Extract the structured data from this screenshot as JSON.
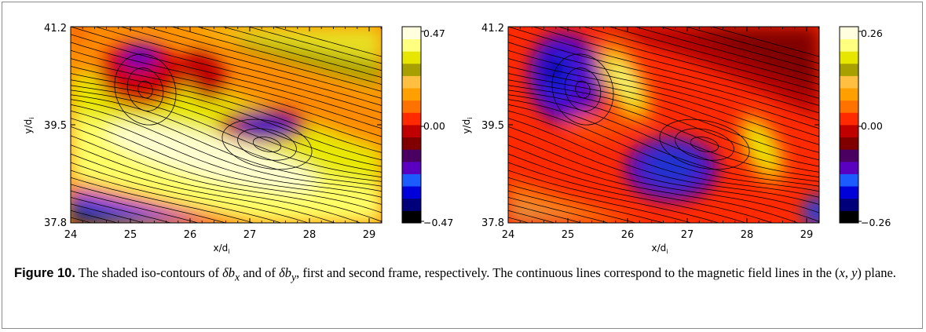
{
  "figure": {
    "panels": [
      {
        "id": "delta-bx",
        "xlabel": "x/d",
        "xlabel_sub": "i",
        "ylabel": "y/d",
        "ylabel_sub": "i",
        "xticks": [
          "24",
          "25",
          "26",
          "27",
          "28",
          "29"
        ],
        "yticks": [
          "37.8",
          "39.5",
          "41.2"
        ],
        "colorbar_ticks": [
          "0.47",
          "0.00",
          "−0.47"
        ]
      },
      {
        "id": "delta-by",
        "xlabel": "x/d",
        "xlabel_sub": "i",
        "ylabel": "y/d",
        "ylabel_sub": "i",
        "xticks": [
          "24",
          "25",
          "26",
          "27",
          "28",
          "29"
        ],
        "yticks": [
          "37.8",
          "39.5",
          "41.2"
        ],
        "colorbar_ticks": [
          "0.26",
          "0.00",
          "−0.26"
        ]
      }
    ],
    "colorbar_levels": [
      "#000000",
      "#00007a",
      "#0000d8",
      "#1c5cff",
      "#5a00c0",
      "#4a0060",
      "#800000",
      "#c00000",
      "#ff2a00",
      "#ff7200",
      "#ffa000",
      "#ffbf40",
      "#a8a000",
      "#e6e600",
      "#ffff80",
      "#ffffe0"
    ],
    "caption": {
      "label": "Figure 10.",
      "t1": " The shaded iso-contours of ",
      "s1": "δb",
      "s1sub": "x",
      "t2": " and of ",
      "s2": "δb",
      "s2sub": "y",
      "t3": ", first and second frame, respectively. The continuous lines correspond to the magnetic field lines in the (",
      "vx": "x",
      "t4": ", ",
      "vy": "y",
      "t5": ") plane."
    }
  },
  "chart_data": [
    {
      "type": "heatmap",
      "title": "",
      "xlabel": "x/d_i",
      "ylabel": "y/d_i",
      "xlim": [
        24,
        29.2
      ],
      "ylim": [
        37.8,
        41.2
      ],
      "x_ticks": [
        24,
        25,
        26,
        27,
        28,
        29
      ],
      "y_ticks": [
        37.8,
        39.5,
        41.2
      ],
      "colorbar_range": [
        -0.47,
        0.47
      ],
      "colorbar_ticks": [
        0.47,
        0.0,
        -0.47
      ],
      "field": "delta b_x",
      "overlay": "magnetic field lines"
    },
    {
      "type": "heatmap",
      "title": "",
      "xlabel": "x/d_i",
      "ylabel": "y/d_i",
      "xlim": [
        24,
        29.2
      ],
      "ylim": [
        37.8,
        41.2
      ],
      "x_ticks": [
        24,
        25,
        26,
        27,
        28,
        29
      ],
      "y_ticks": [
        37.8,
        39.5,
        41.2
      ],
      "colorbar_range": [
        -0.26,
        0.26
      ],
      "colorbar_ticks": [
        0.26,
        0.0,
        -0.26
      ],
      "field": "delta b_y",
      "overlay": "magnetic field lines"
    }
  ]
}
